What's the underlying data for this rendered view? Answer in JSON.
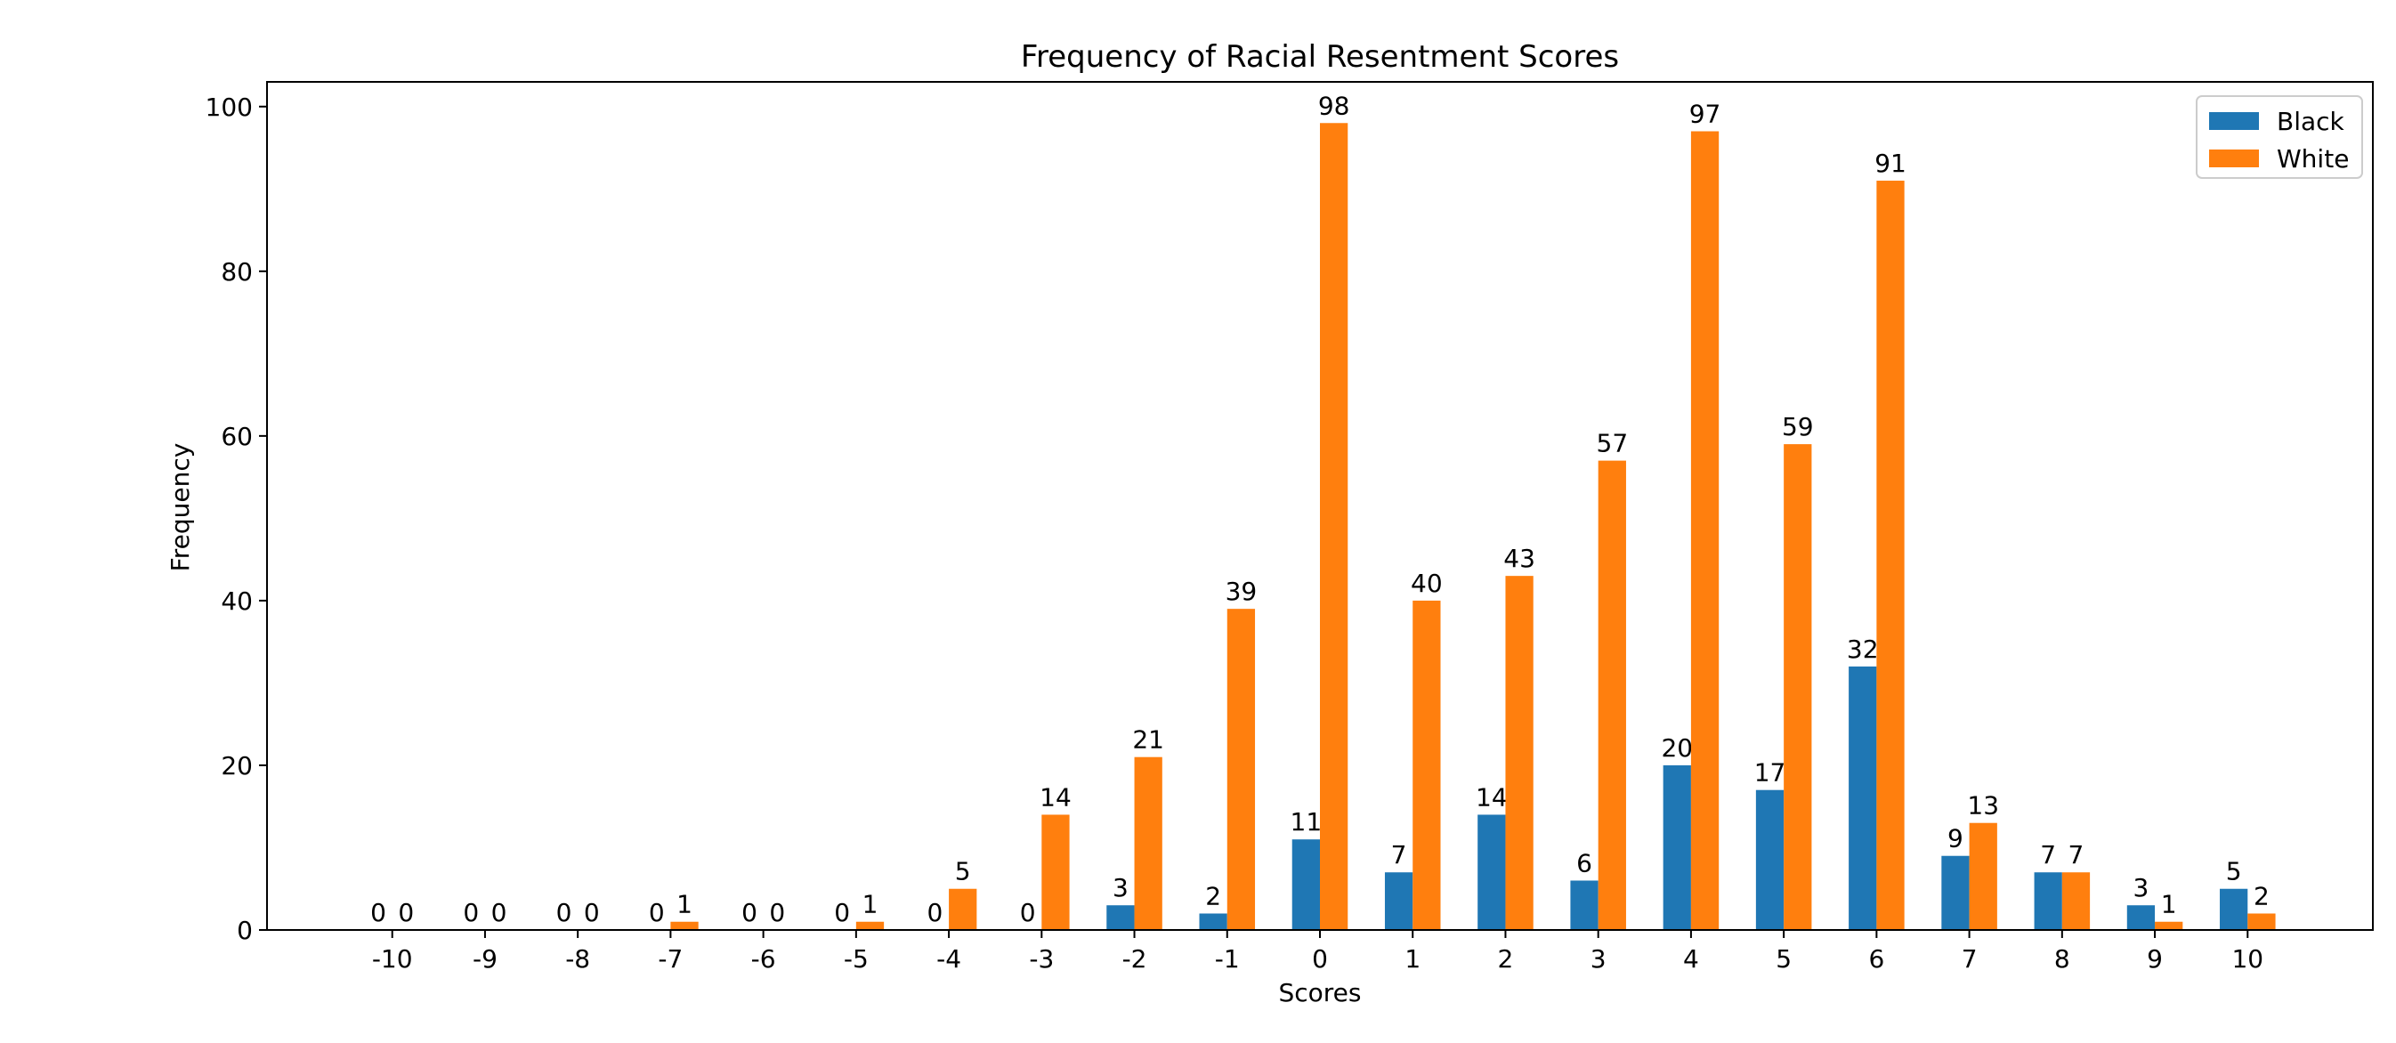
{
  "chart_data": {
    "type": "bar",
    "title": "Frequency of Racial Resentment Scores",
    "xlabel": "Scores",
    "ylabel": "Frequency",
    "categories": [
      "-10",
      "-9",
      "-8",
      "-7",
      "-6",
      "-5",
      "-4",
      "-3",
      "-2",
      "-1",
      "0",
      "1",
      "2",
      "3",
      "4",
      "5",
      "6",
      "7",
      "8",
      "9",
      "10"
    ],
    "series": [
      {
        "name": "Black",
        "color": "#1f77b4",
        "values": [
          0,
          0,
          0,
          0,
          0,
          0,
          0,
          0,
          3,
          2,
          11,
          7,
          14,
          6,
          20,
          17,
          32,
          9,
          7,
          3,
          5
        ]
      },
      {
        "name": "White",
        "color": "#ff7f0e",
        "values": [
          0,
          0,
          0,
          1,
          0,
          1,
          5,
          14,
          21,
          39,
          98,
          40,
          43,
          57,
          97,
          59,
          91,
          13,
          7,
          1,
          2
        ]
      }
    ],
    "bar_labels": {
      "Black": [
        "0",
        "0",
        "0",
        "0",
        "0",
        "0",
        "0",
        "0",
        "3",
        "2",
        "11",
        "7",
        "14",
        "6",
        "20",
        "17",
        "32",
        "9",
        "7",
        "3",
        "5"
      ],
      "White": [
        "0",
        "0",
        "0",
        "1",
        "0",
        "1",
        "5",
        "14",
        "21",
        "39",
        "98",
        "40",
        "43",
        "57",
        "97",
        "59",
        "91",
        "13",
        "7",
        "1",
        "2"
      ]
    },
    "ylim": [
      0,
      103
    ],
    "yticks": [
      "0",
      "20",
      "40",
      "60",
      "80",
      "100"
    ],
    "legend_position": "top-right",
    "grid": false
  }
}
